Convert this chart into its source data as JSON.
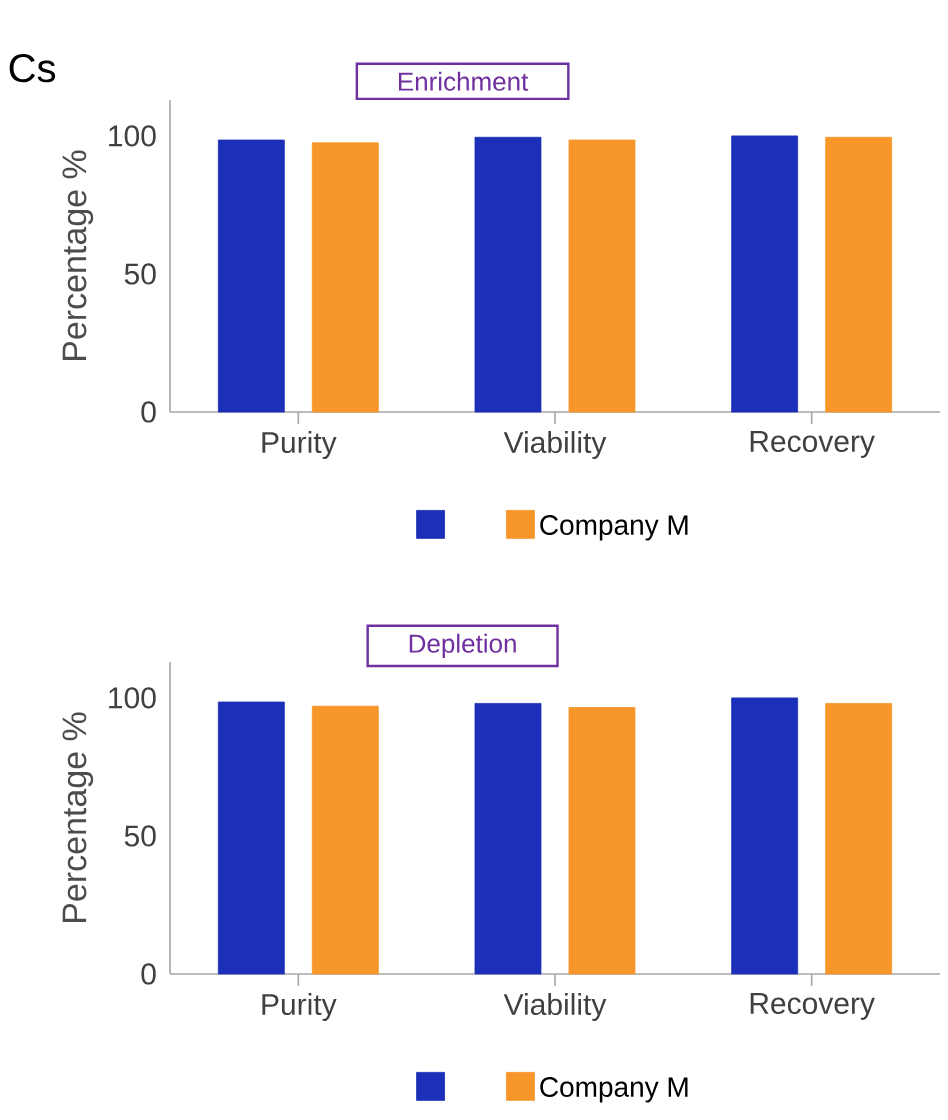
{
  "chart_data": [
    {
      "type": "bar",
      "title": "Enrichment",
      "ylabel": "Percentage %",
      "annotations": [
        "Cs"
      ],
      "categories": [
        "Purity",
        "Viability",
        "Recovery"
      ],
      "series": [
        {
          "color": "#1c2fb8",
          "values": [
            98.5,
            99.5,
            100
          ]
        },
        {
          "name": "Company M",
          "color": "#f7962a",
          "values": [
            97.5,
            98.5,
            99.5
          ]
        }
      ],
      "ylim": [
        0,
        113
      ],
      "yticks": [
        0,
        50,
        100
      ],
      "legend": "bottom",
      "grid": false
    },
    {
      "type": "bar",
      "title": "Depletion",
      "ylabel": "Percentage %",
      "categories": [
        "Purity",
        "Viability",
        "Recovery"
      ],
      "series": [
        {
          "color": "#1c2fb8",
          "values": [
            98.5,
            98,
            100
          ]
        },
        {
          "name": "Company M",
          "color": "#f7962a",
          "values": [
            97,
            96.5,
            98
          ]
        }
      ],
      "ylim": [
        0,
        113
      ],
      "yticks": [
        0,
        50,
        100
      ],
      "legend": "bottom",
      "grid": false
    }
  ]
}
